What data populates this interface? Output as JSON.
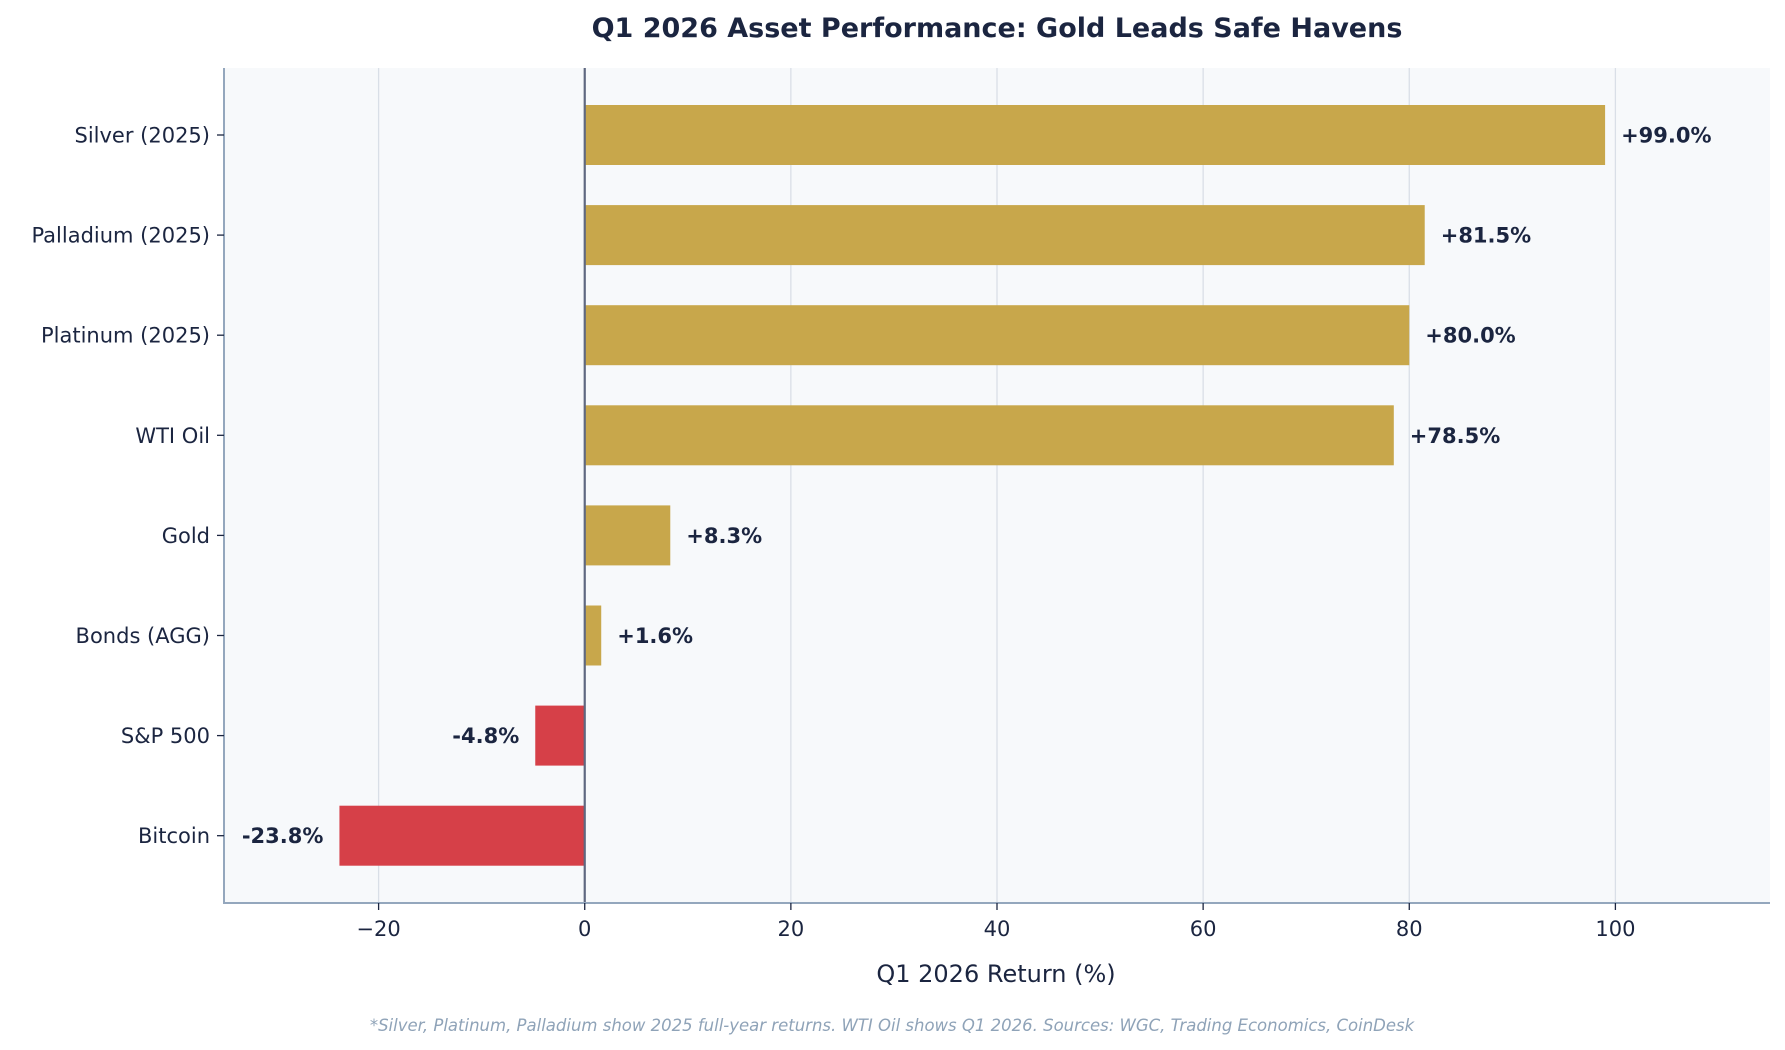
{
  "chart_data": {
    "type": "bar",
    "orientation": "horizontal",
    "title": "Q1 2026 Asset Performance: Gold Leads Safe Havens",
    "xlabel": "Q1 2026 Return (%)",
    "ylabel": "",
    "categories": [
      "Silver (2025)",
      "Palladium (2025)",
      "Platinum (2025)",
      "WTI Oil",
      "Gold",
      "Bonds (AGG)",
      "S&P 500",
      "Bitcoin"
    ],
    "values": [
      99.0,
      81.5,
      80.0,
      78.5,
      8.3,
      1.6,
      -4.8,
      -23.8
    ],
    "data_labels": [
      "+99.0%",
      "+81.5%",
      "+80.0%",
      "+78.5%",
      "+8.3%",
      "+1.6%",
      "-4.8%",
      "-23.8%"
    ],
    "xlim": [
      -35,
      115
    ],
    "xticks": [
      -20,
      0,
      20,
      40,
      60,
      80,
      100
    ],
    "xtick_labels": [
      "−20",
      "0",
      "20",
      "40",
      "60",
      "80",
      "100"
    ],
    "grid": "vertical",
    "legend": null,
    "colors": {
      "positive": "#c8a74b",
      "negative": "#d64048",
      "zero_line": "#5f6880",
      "plot_background": "#f7f9fb",
      "gridline": "#d9dfe7",
      "spine": "#94a7bd",
      "text": "#1b2540"
    },
    "footnote": "*Silver, Platinum, Palladium show 2025 full-year returns. WTI Oil shows Q1 2026. Sources: WGC, Trading Economics, CoinDesk"
  }
}
